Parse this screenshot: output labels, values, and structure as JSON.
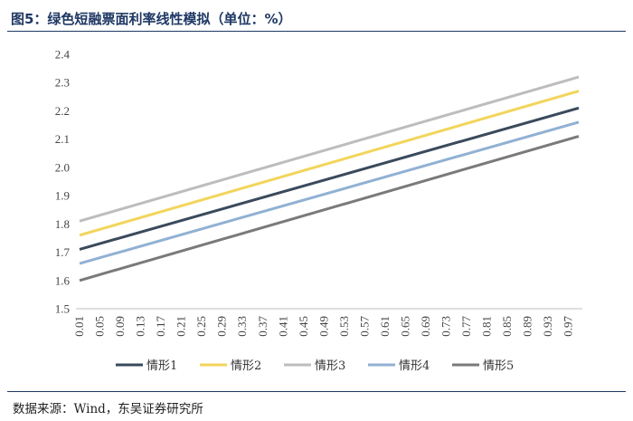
{
  "header": {
    "title": "图5：绿色短融票面利率线性模拟（单位：%）"
  },
  "footer": {
    "source": "数据来源：Wind，东吴证券研究所"
  },
  "colors": {
    "series": [
      "#3a4a5c",
      "#f2d55b",
      "#bdbdbd",
      "#91b1d3",
      "#7a7a7a"
    ],
    "axis": "#bfbfbf"
  },
  "chart_data": {
    "type": "line",
    "title": "",
    "xlabel": "",
    "ylabel": "",
    "grid": false,
    "legend_position": "bottom",
    "ylim": [
      1.5,
      2.4
    ],
    "yticks": [
      "1.5",
      "1.6",
      "1.7",
      "1.8",
      "1.9",
      "2.0",
      "2.1",
      "2.2",
      "2.3",
      "2.4"
    ],
    "x": [
      0.01,
      0.99
    ],
    "xticks": [
      "0.01",
      "0.05",
      "0.09",
      "0.13",
      "0.17",
      "0.21",
      "0.25",
      "0.29",
      "0.33",
      "0.37",
      "0.41",
      "0.45",
      "0.49",
      "0.53",
      "0.57",
      "0.61",
      "0.65",
      "0.69",
      "0.73",
      "0.77",
      "0.81",
      "0.85",
      "0.89",
      "0.93",
      "0.97"
    ],
    "series": [
      {
        "name": "情形1",
        "values": [
          1.71,
          2.21
        ]
      },
      {
        "name": "情形2",
        "values": [
          1.76,
          2.27
        ]
      },
      {
        "name": "情形3",
        "values": [
          1.81,
          2.32
        ]
      },
      {
        "name": "情形4",
        "values": [
          1.66,
          2.16
        ]
      },
      {
        "name": "情形5",
        "values": [
          1.6,
          2.11
        ]
      }
    ]
  }
}
